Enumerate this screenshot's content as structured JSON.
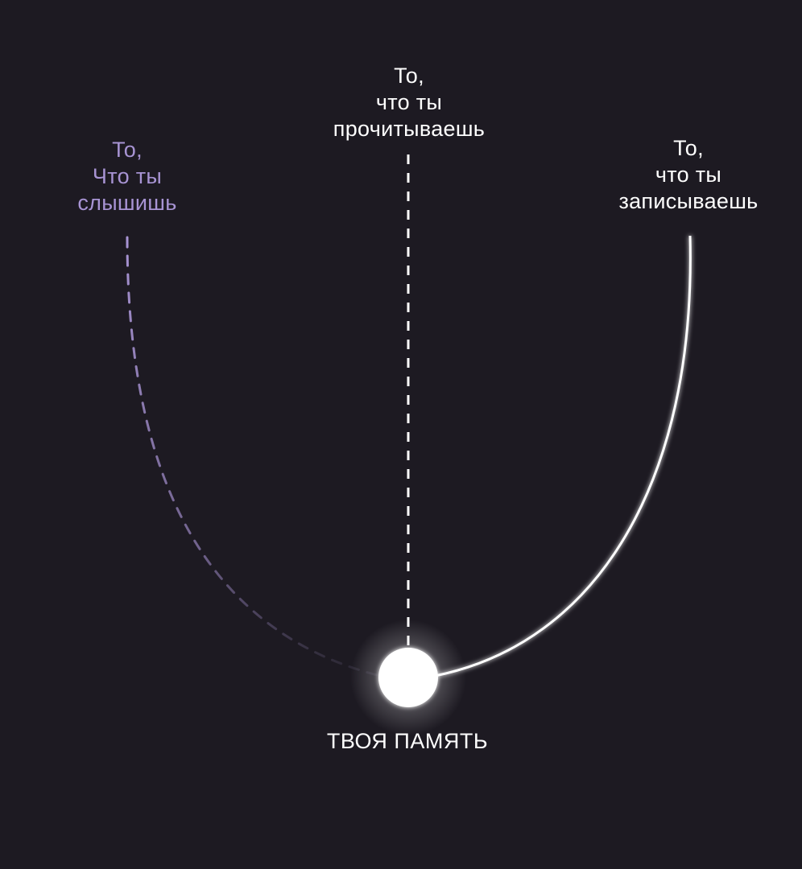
{
  "labels": {
    "heard": [
      "То,",
      "Что ты",
      "слышишь"
    ],
    "read": [
      "То,",
      "что ты",
      "прочитываешь"
    ],
    "written": [
      "То,",
      "что ты",
      "записываешь"
    ]
  },
  "memory": "ТВОЯ ПАМЯТЬ",
  "colors": {
    "background": "#1d1a22",
    "heard": "#a894d4",
    "read": "#ffffff",
    "written": "#ffffff",
    "node": "#ffffff"
  }
}
